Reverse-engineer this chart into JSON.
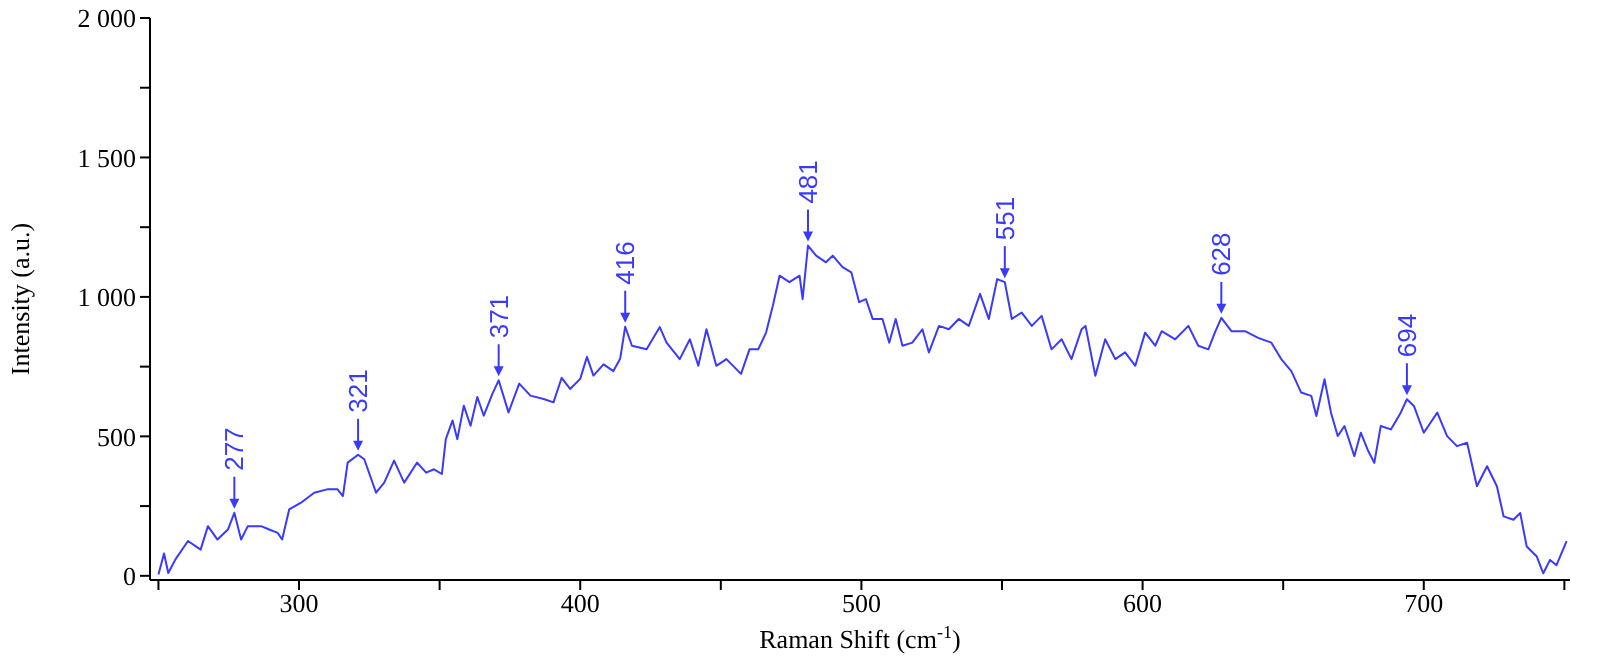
{
  "chart_data": {
    "type": "line",
    "xlabel": "Raman Shift (cm$^{-1}$)",
    "ylabel": "Intensity (a.u.)",
    "color": "#3a3aff",
    "line_style": "solid",
    "x": [
      250,
      252,
      253.5,
      256,
      260.5,
      265,
      267.6,
      271,
      274.7,
      277,
      279.4,
      281.8,
      286.5,
      289.4,
      292.4,
      294,
      296.5,
      300.7,
      305.4,
      310,
      313.7,
      315.6,
      317.3,
      321,
      323.2,
      327.4,
      330.3,
      333.8,
      337.4,
      342,
      345.2,
      348,
      350.8,
      352.2,
      354.6,
      356.3,
      358.6,
      361,
      363.4,
      365.7,
      368.8,
      371,
      374.5,
      378.3,
      382.3,
      387,
      390.5,
      393.4,
      396.4,
      400,
      402.4,
      404.7,
      408.3,
      411.8,
      414.2,
      416,
      418.4,
      423.6,
      428.3,
      430.7,
      435.4,
      439,
      442,
      444.9,
      448.4,
      452,
      457.2,
      460.2,
      463.3,
      466.1,
      468.5,
      470.9,
      474.4,
      478,
      479.1,
      481,
      483.9,
      487.4,
      489.8,
      493.3,
      496.4,
      499.2,
      501.6,
      504,
      507.5,
      509.9,
      512.2,
      514.6,
      518.1,
      521.7,
      524,
      527.6,
      531.1,
      534.6,
      538.2,
      542.2,
      545.3,
      548.3,
      551,
      553.5,
      557,
      560.6,
      564.1,
      567.6,
      571.2,
      574.7,
      578.3,
      579.7,
      583.2,
      586.7,
      590.3,
      593.8,
      597.4,
      600.9,
      604.5,
      606.8,
      611.6,
      616.3,
      619.8,
      623.4,
      625.7,
      628,
      631.6,
      636.4,
      641.1,
      645.8,
      649.3,
      652.9,
      656.4,
      660,
      661.8,
      664.7,
      667,
      669.4,
      671.8,
      675.3,
      677.6,
      680,
      682.4,
      684.7,
      688.3,
      691.8,
      694,
      696.5,
      700,
      704.8,
      708.3,
      711.8,
      715.4,
      718.9,
      722.5,
      726,
      728.4,
      731.9,
      734.3,
      736.6,
      740.2,
      742.5,
      744.9,
      747.2,
      750.8
    ],
    "values": [
      5,
      80,
      10,
      58,
      125,
      94,
      178,
      130,
      166,
      226,
      130,
      178,
      178,
      166,
      154,
      130,
      238,
      262,
      298,
      310,
      310,
      286,
      406,
      434,
      418,
      298,
      334,
      413,
      334,
      406,
      370,
      382,
      365,
      490,
      557,
      490,
      610,
      538,
      641,
      574,
      653,
      701,
      586,
      689,
      646,
      634,
      622,
      710,
      670,
      706,
      785,
      718,
      758,
      734,
      778,
      893,
      825,
      812,
      892,
      836,
      777,
      848,
      753,
      884,
      753,
      777,
      724,
      812,
      812,
      872,
      968,
      1076,
      1053,
      1076,
      992,
      1184,
      1148,
      1124,
      1148,
      1107,
      1088,
      981,
      992,
      921,
      921,
      836,
      921,
      825,
      836,
      884,
      801,
      896,
      884,
      921,
      896,
      1011,
      921,
      1064,
      1053,
      921,
      944,
      896,
      932,
      812,
      848,
      777,
      884,
      896,
      717,
      848,
      777,
      801,
      753,
      872,
      825,
      877,
      848,
      896,
      825,
      812,
      872,
      925,
      877,
      877,
      853,
      836,
      777,
      734,
      657,
      645,
      573,
      705,
      585,
      501,
      537,
      429,
      513,
      453,
      405,
      537,
      525,
      585,
      633,
      609,
      513,
      585,
      501,
      465,
      477,
      321,
      393,
      321,
      213,
      201,
      225,
      105,
      69,
      9,
      57,
      38,
      124
    ],
    "xlim": [
      247,
      752
    ],
    "xticks": [
      {
        "value": 250,
        "label": null
      },
      300,
      {
        "value": 350,
        "label": null
      },
      400,
      {
        "value": 450,
        "label": null
      },
      500,
      {
        "value": 550,
        "label": null
      },
      600,
      {
        "value": 650,
        "label": null
      },
      700,
      {
        "value": 750,
        "label": null
      }
    ],
    "ylim": [
      -15,
      2000
    ],
    "yticks": [
      0,
      {
        "value": 250,
        "label": null
      },
      500,
      {
        "value": 750,
        "label": null
      },
      {
        "value": 1000,
        "label": "1 000"
      },
      {
        "value": 1250,
        "label": null
      },
      {
        "value": 1500,
        "label": "1 500"
      },
      {
        "value": 1750,
        "label": null
      },
      {
        "value": 2000,
        "label": "2 000"
      }
    ],
    "annotations": [
      {
        "text": "277",
        "x": 277,
        "y": 226
      },
      {
        "text": "321",
        "x": 321,
        "y": 434
      },
      {
        "text": "371",
        "x": 371,
        "y": 701
      },
      {
        "text": "416",
        "x": 416,
        "y": 893
      },
      {
        "text": "481",
        "x": 481,
        "y": 1184
      },
      {
        "text": "551",
        "x": 551,
        "y": 1053
      },
      {
        "text": "628",
        "x": 628,
        "y": 925
      },
      {
        "text": "694",
        "x": 694,
        "y": 633
      }
    ]
  }
}
